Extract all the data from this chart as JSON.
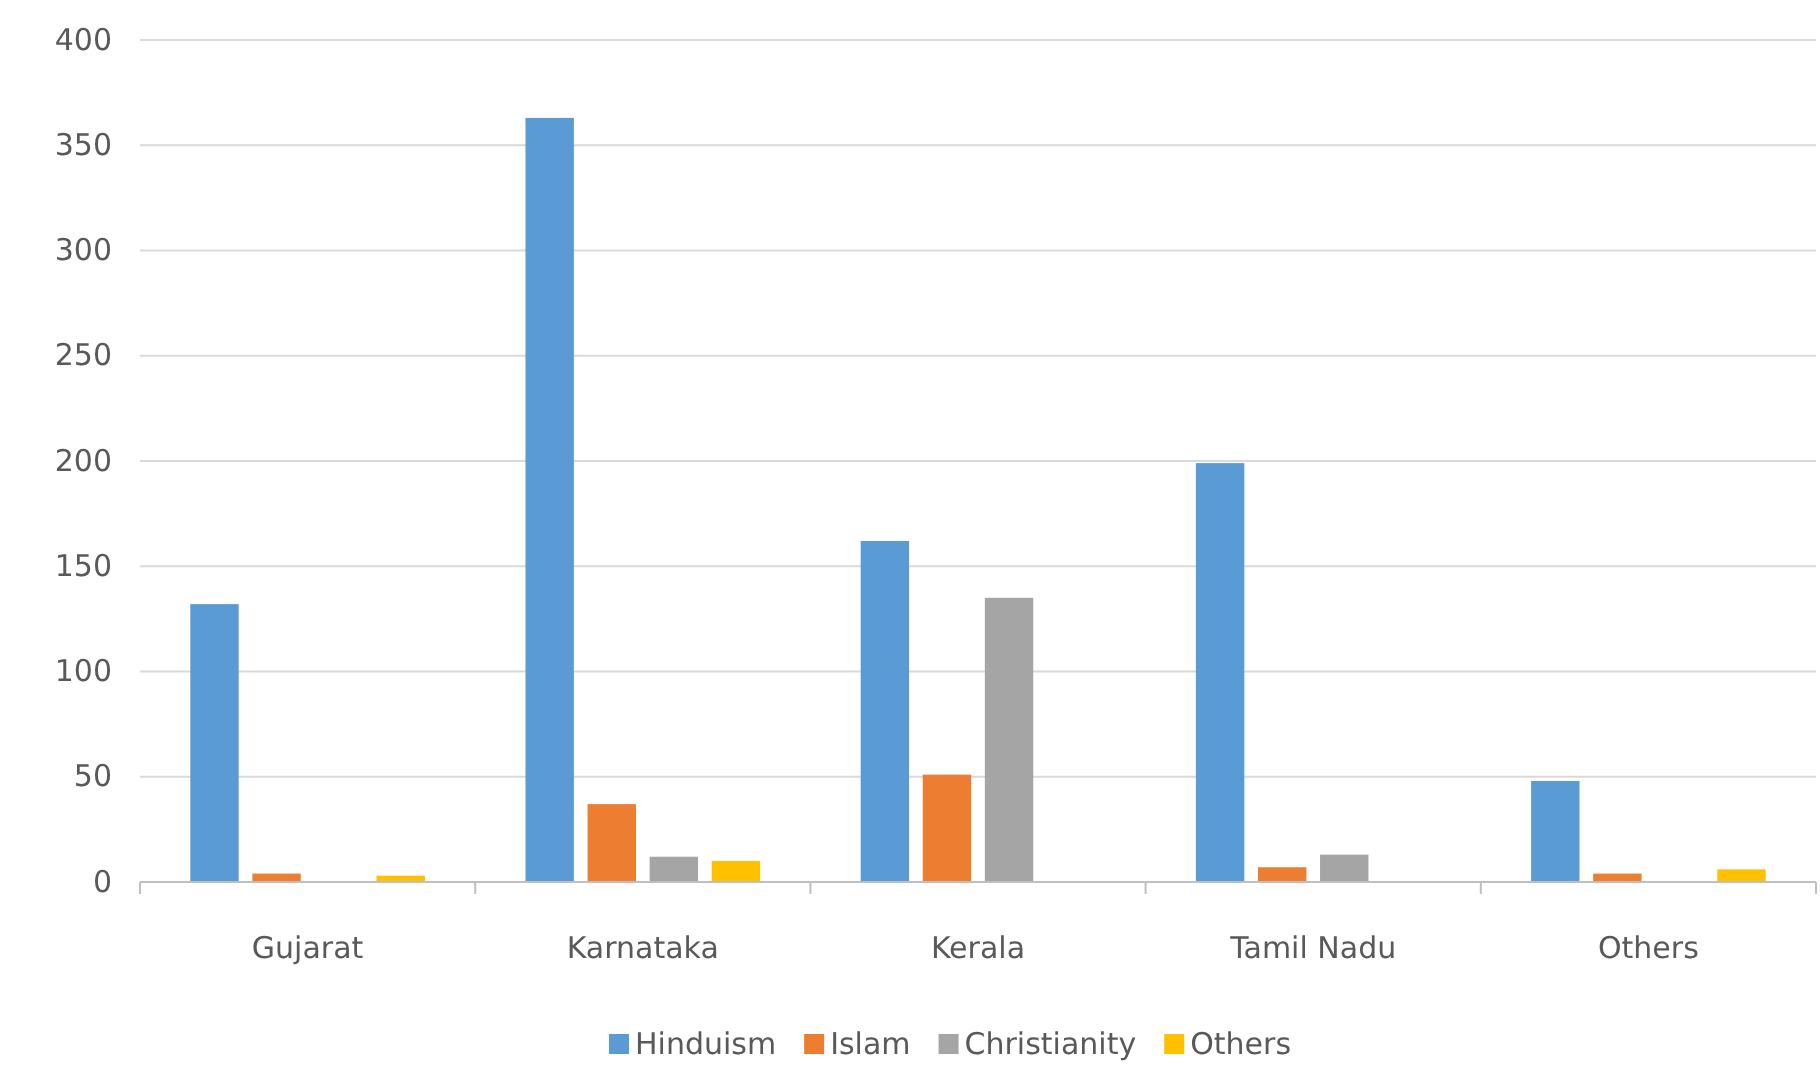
{
  "chart_data": {
    "type": "bar",
    "categories": [
      "Gujarat",
      "Karnataka",
      "Kerala",
      "Tamil Nadu",
      "Others"
    ],
    "series": [
      {
        "name": "Hinduism",
        "color": "#5b9bd5",
        "values": [
          132,
          363,
          162,
          199,
          48
        ]
      },
      {
        "name": "Islam",
        "color": "#ed7d31",
        "values": [
          4,
          37,
          51,
          7,
          4
        ]
      },
      {
        "name": "Christianity",
        "color": "#a5a5a5",
        "values": [
          0,
          12,
          135,
          13,
          0
        ]
      },
      {
        "name": "Others",
        "color": "#ffc000",
        "values": [
          3,
          10,
          0,
          0,
          6
        ]
      }
    ],
    "ylim": [
      0,
      400
    ],
    "yticks": [
      0,
      50,
      100,
      150,
      200,
      250,
      300,
      350,
      400
    ],
    "grid": "y",
    "legend": "bottom"
  }
}
